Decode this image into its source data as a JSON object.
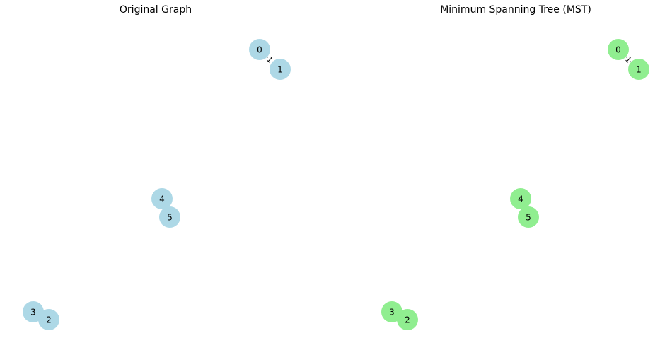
{
  "panels": [
    {
      "title": "Original Graph",
      "node_color": "#add8e6",
      "nodes": [
        "0",
        "1",
        "2",
        "3",
        "4",
        "5"
      ],
      "edges": [
        {
          "source": "0",
          "target": "1",
          "weight_label": "1"
        },
        {
          "source": "2",
          "target": "3",
          "weight_label": ""
        },
        {
          "source": "4",
          "target": "5",
          "weight_label": ""
        }
      ]
    },
    {
      "title": "Minimum Spanning Tree (MST)",
      "node_color": "#90ee90",
      "nodes": [
        "0",
        "1",
        "2",
        "3",
        "4",
        "5"
      ],
      "edges": [
        {
          "source": "0",
          "target": "1",
          "weight_label": "1"
        },
        {
          "source": "2",
          "target": "3",
          "weight_label": ""
        },
        {
          "source": "4",
          "target": "5",
          "weight_label": ""
        }
      ]
    }
  ]
}
